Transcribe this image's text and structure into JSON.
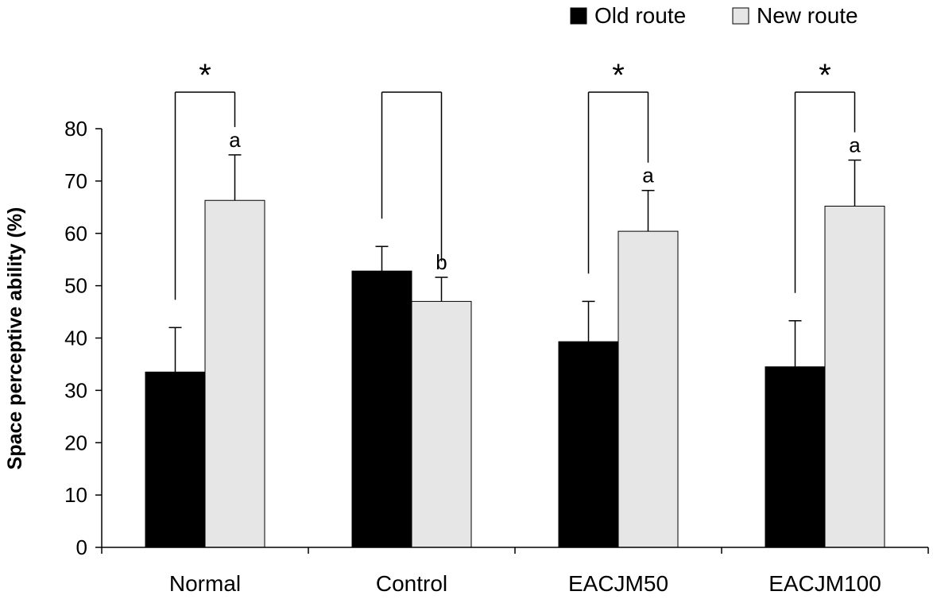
{
  "chart_data": {
    "type": "bar",
    "title": "",
    "xlabel": "",
    "ylabel": "Space  perceptive  ability (%)",
    "ylim": [
      0,
      80
    ],
    "yticks": [
      0,
      10,
      20,
      30,
      40,
      50,
      60,
      70,
      80
    ],
    "yticklabels": [
      "0",
      "10",
      "20",
      "30",
      "40",
      "50",
      "60",
      "70",
      "80"
    ],
    "categories": [
      "Normal",
      "Control",
      "EACJM50",
      "EACJM100"
    ],
    "legend_position": "top-right",
    "series": [
      {
        "name": "Old route",
        "color": "#000000",
        "values": [
          33.5,
          52.8,
          39.3,
          34.5
        ],
        "errors": [
          8.5,
          4.7,
          7.7,
          8.8
        ]
      },
      {
        "name": "New route",
        "color": "#e6e6e6",
        "values": [
          66.3,
          47.0,
          60.4,
          65.2
        ],
        "errors": [
          8.7,
          4.6,
          7.8,
          8.8
        ]
      }
    ],
    "letter_labels": [
      "a",
      "b",
      "a",
      "a"
    ],
    "significance_brackets": [
      {
        "category": 0,
        "label": "*"
      },
      {
        "category": 1,
        "label": ""
      },
      {
        "category": 2,
        "label": "*"
      },
      {
        "category": 3,
        "label": "*"
      }
    ]
  }
}
